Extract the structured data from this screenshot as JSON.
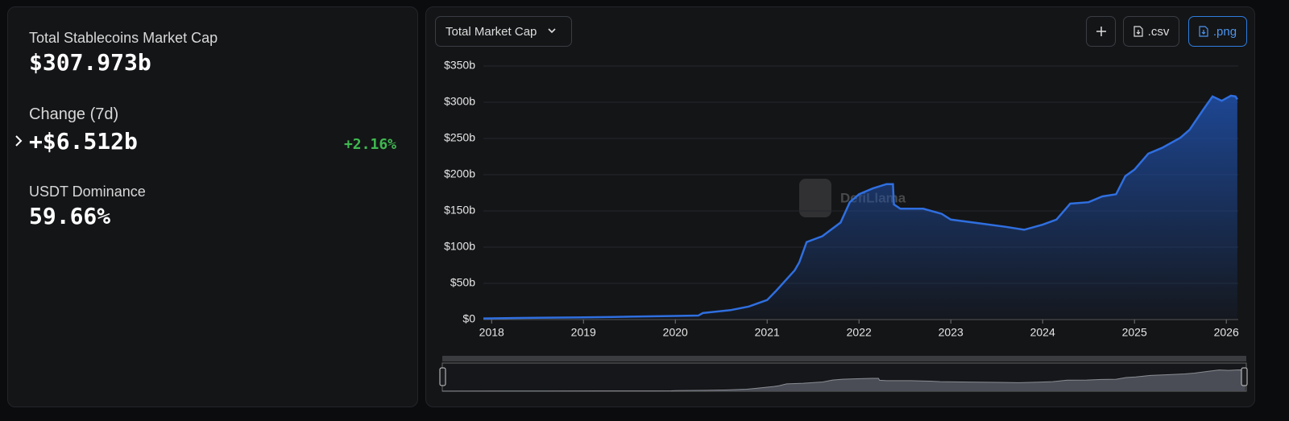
{
  "stats": [
    {
      "label": "Total Stablecoins Market Cap",
      "value": "$307.973b"
    },
    {
      "label": "Change (7d)",
      "value": "+$6.512b",
      "change": "+2.16%"
    },
    {
      "label": "USDT Dominance",
      "value": "59.66%"
    }
  ],
  "controls": {
    "metric": "Total Market Cap",
    "csv": ".csv",
    "png": ".png"
  },
  "chart_data": {
    "type": "area",
    "watermark": "DefiLlama",
    "x": [
      2017.91,
      2018.5,
      2019.0,
      2019.5,
      2020.0,
      2020.25,
      2020.3,
      2020.6,
      2020.8,
      2021.0,
      2021.1,
      2021.3,
      2021.35,
      2021.43,
      2021.6,
      2021.8,
      2021.9,
      2022.0,
      2022.15,
      2022.3,
      2022.37,
      2022.38,
      2022.45,
      2022.7,
      2022.9,
      2023.0,
      2023.3,
      2023.6,
      2023.8,
      2024.0,
      2024.15,
      2024.3,
      2024.5,
      2024.65,
      2024.8,
      2024.9,
      2025.0,
      2025.15,
      2025.3,
      2025.5,
      2025.6,
      2025.75,
      2025.85,
      2025.95,
      2026.05,
      2026.1,
      2026.12
    ],
    "values": [
      1.5,
      2.5,
      3,
      4,
      5,
      5.5,
      9,
      13,
      18,
      27,
      40,
      68,
      79,
      107,
      115,
      134,
      162,
      173,
      181,
      187,
      187,
      159,
      153,
      153,
      146,
      138,
      133,
      128,
      124,
      131,
      138,
      160,
      162,
      170,
      173,
      198,
      207,
      229,
      237,
      251,
      262,
      290,
      308,
      302,
      309,
      308,
      304
    ],
    "color": "#2f6fe0",
    "xlim": [
      2017.91,
      2026.13
    ],
    "xticks": [
      2018,
      2019,
      2020,
      2021,
      2022,
      2023,
      2024,
      2025,
      2026
    ],
    "ylim": [
      0,
      350
    ],
    "yticks": [
      {
        "value": 0,
        "label": "$0"
      },
      {
        "value": 50,
        "label": "$50b"
      },
      {
        "value": 100,
        "label": "$100b"
      },
      {
        "value": 150,
        "label": "$150b"
      },
      {
        "value": 200,
        "label": "$200b"
      },
      {
        "value": 250,
        "label": "$250b"
      },
      {
        "value": 300,
        "label": "$300b"
      },
      {
        "value": 350,
        "label": "$350b"
      }
    ],
    "grid": true
  }
}
